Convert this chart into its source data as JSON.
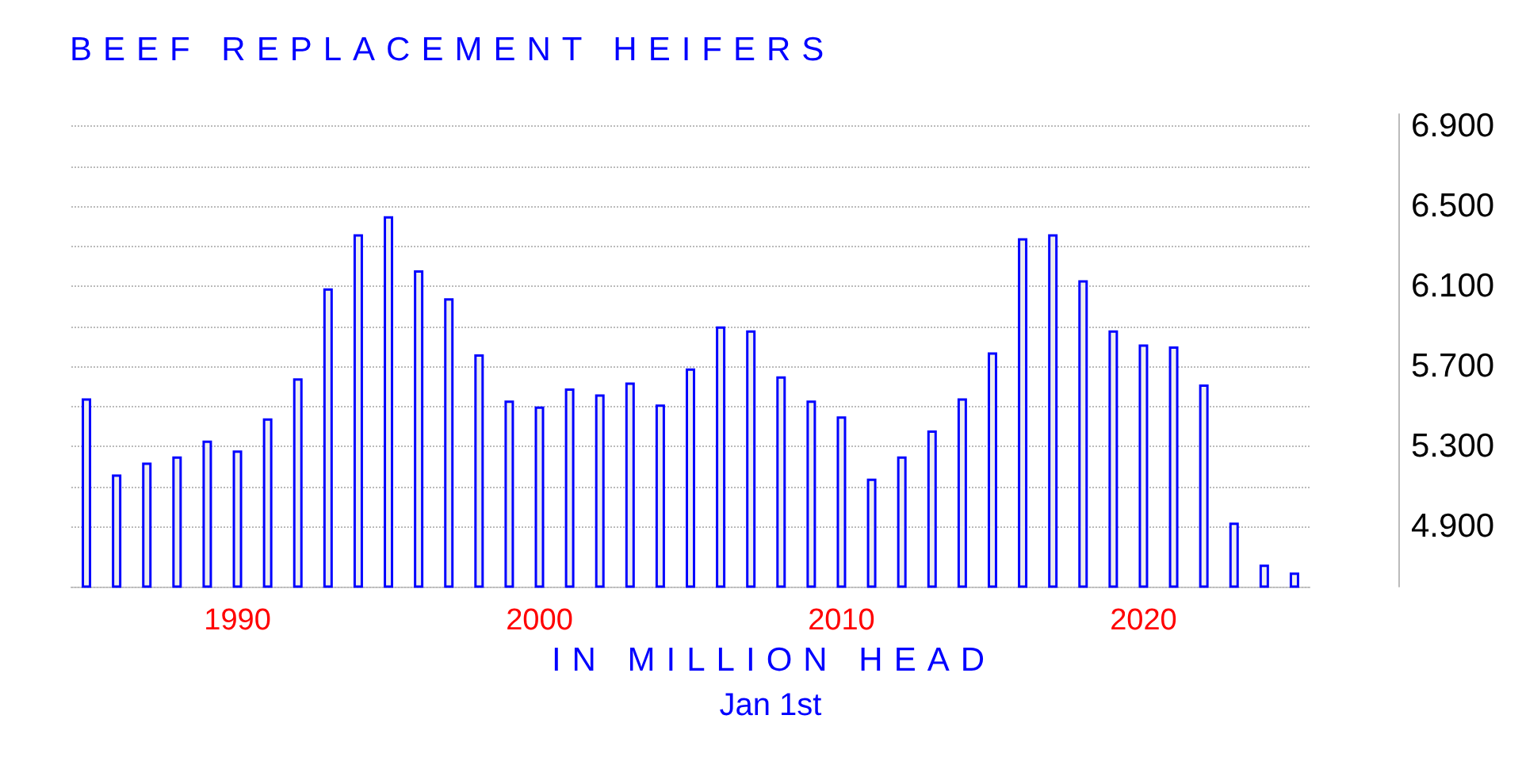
{
  "chart_data": {
    "type": "bar",
    "title": "BEEF REPLACEMENT HEIFERS",
    "xlabel": "IN  MILLION  HEAD",
    "annotations": [
      "Jan 1st"
    ],
    "categories": [
      null,
      null,
      null,
      null,
      null,
      "1990",
      null,
      null,
      null,
      null,
      null,
      null,
      null,
      null,
      null,
      "2000",
      null,
      null,
      null,
      null,
      null,
      null,
      null,
      null,
      null,
      "2010",
      null,
      null,
      null,
      null,
      null,
      null,
      null,
      null,
      null,
      "2020",
      null,
      null,
      null,
      null,
      null
    ],
    "values": [
      5.54,
      5.16,
      5.22,
      5.25,
      5.33,
      5.28,
      5.44,
      5.64,
      6.09,
      6.36,
      6.45,
      6.18,
      6.04,
      5.76,
      5.53,
      5.5,
      5.59,
      5.56,
      5.62,
      5.51,
      5.69,
      5.9,
      5.88,
      5.65,
      5.53,
      5.45,
      5.14,
      5.25,
      5.38,
      5.54,
      5.77,
      6.34,
      6.36,
      6.13,
      5.88,
      5.81,
      5.8,
      5.61,
      4.92,
      4.71,
      4.67
    ],
    "color": "#0000ff",
    "ylim": [
      4.6,
      6.96
    ],
    "yticks": [
      {
        "value": 4.9,
        "label": "4.900"
      },
      {
        "value": 5.1,
        "label": null
      },
      {
        "value": 5.3,
        "label": "5.300"
      },
      {
        "value": 5.5,
        "label": null
      },
      {
        "value": 5.7,
        "label": "5.700"
      },
      {
        "value": 5.9,
        "label": null
      },
      {
        "value": 6.1,
        "label": "6.100"
      },
      {
        "value": 6.3,
        "label": null
      },
      {
        "value": 6.5,
        "label": "6.500"
      },
      {
        "value": 6.7,
        "label": null
      },
      {
        "value": 6.9,
        "label": "6.900"
      }
    ],
    "grid": "y"
  }
}
